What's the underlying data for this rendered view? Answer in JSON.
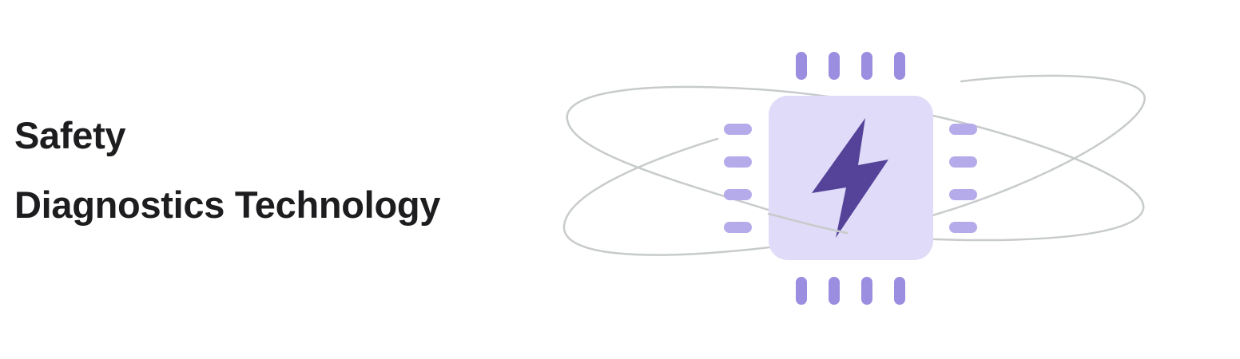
{
  "heading": {
    "line1": "Safety",
    "line2": "Diagnostics Technology"
  },
  "illustration": {
    "icon": "chip-with-lightning-bolt-icon",
    "colors": {
      "chip_body": "#e0dbf8",
      "chip_pins_vertical": "#9b8de0",
      "chip_pins_horizontal": "#b6abea",
      "bolt": "#544399",
      "orbit_rings": "#c8cbcc"
    }
  }
}
